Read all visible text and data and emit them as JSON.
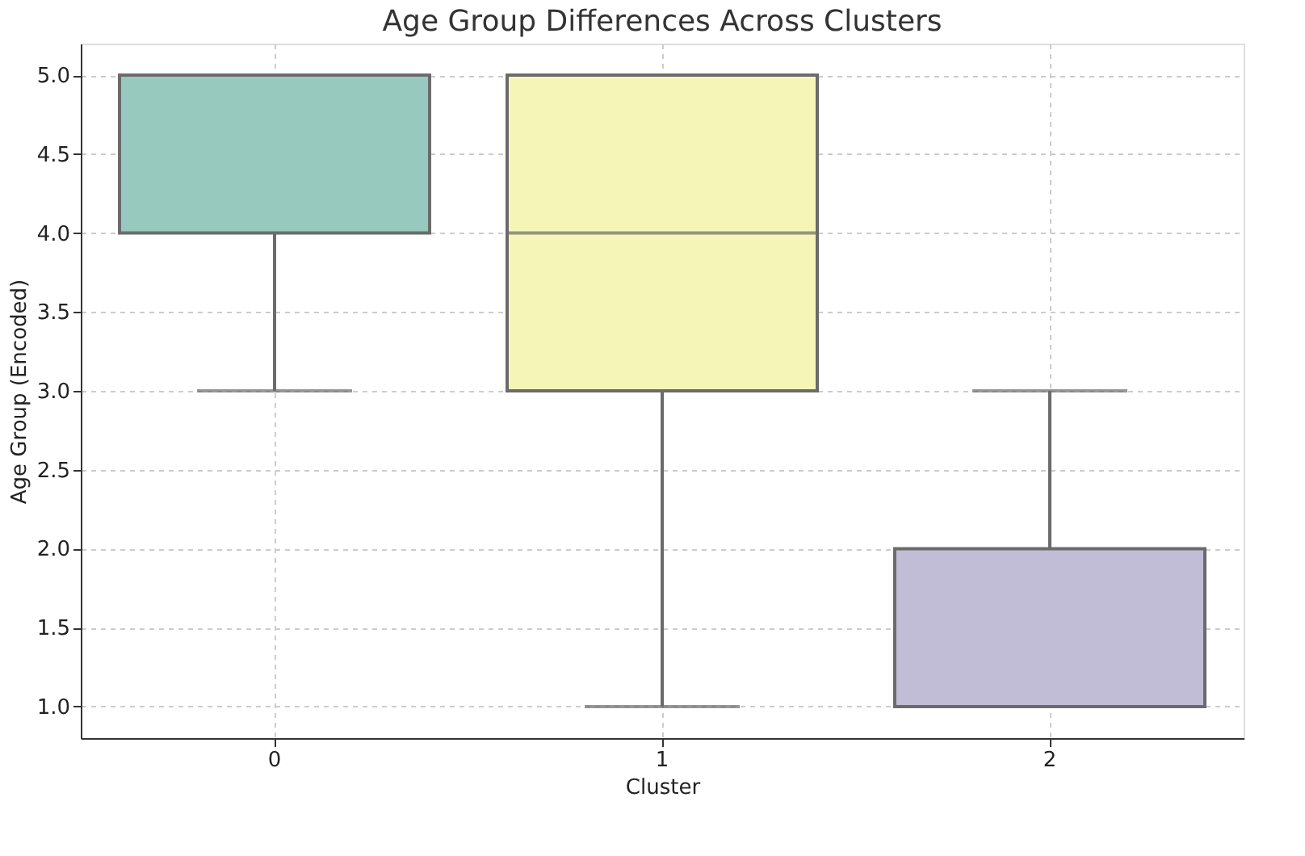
{
  "chart_data": {
    "type": "box",
    "title": "Age Group Differences Across Clusters",
    "xlabel": "Cluster",
    "ylabel": "Age Group (Encoded)",
    "categories": [
      "0",
      "1",
      "2"
    ],
    "boxes": [
      {
        "low": 3,
        "q1": 4,
        "median": 5,
        "q3": 5,
        "high": 5
      },
      {
        "low": 1,
        "q1": 3,
        "median": 4,
        "q3": 5,
        "high": 5
      },
      {
        "low": 1,
        "q1": 1,
        "median": 1,
        "q3": 2,
        "high": 3
      }
    ],
    "colors": [
      "#97c9bf",
      "#f5f5b8",
      "#c1bdd6"
    ],
    "ylim": [
      0.8,
      5.2
    ],
    "yticks": [
      {
        "value": 1,
        "label": "1.0"
      },
      1.5,
      {
        "value": 2,
        "label": "2.0"
      },
      2.5,
      {
        "value": 3,
        "label": "3.0"
      },
      3.5,
      {
        "value": 4,
        "label": "4.0"
      },
      4.5,
      {
        "value": 5,
        "label": "5.0"
      }
    ],
    "grid": true
  }
}
